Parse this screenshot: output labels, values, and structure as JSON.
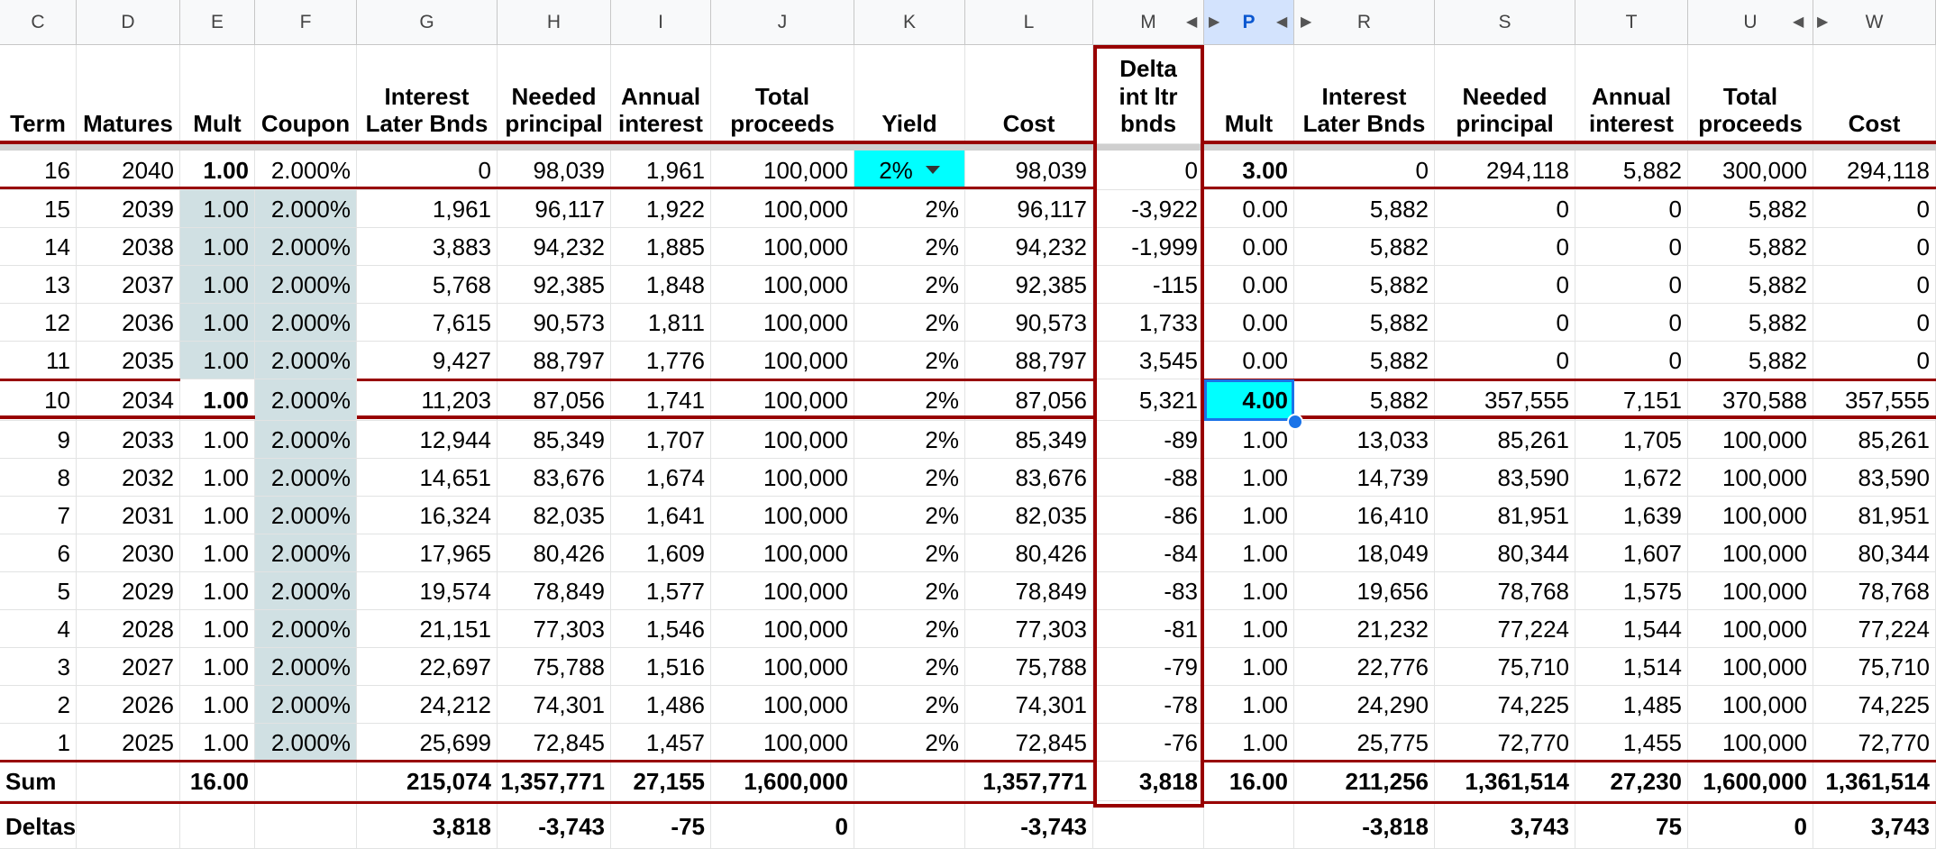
{
  "column_letters": [
    "C",
    "D",
    "E",
    "F",
    "G",
    "H",
    "I",
    "J",
    "K",
    "L",
    "M",
    "P",
    "R",
    "S",
    "T",
    "U",
    "W"
  ],
  "header_labels": {
    "C": [
      "Term"
    ],
    "D": [
      "Matures"
    ],
    "E": [
      "Mult"
    ],
    "F": [
      "Coupon"
    ],
    "G": [
      "Interest",
      "Later Bnds"
    ],
    "H": [
      "Needed",
      "principal"
    ],
    "I": [
      "Annual",
      "interest"
    ],
    "J": [
      "Total",
      "proceeds"
    ],
    "K": [
      "Yield"
    ],
    "L": [
      "Cost"
    ],
    "M": [
      "Delta",
      "int ltr",
      "bnds"
    ],
    "P": [
      "Mult"
    ],
    "R": [
      "Interest",
      "Later Bnds"
    ],
    "S": [
      "Needed",
      "principal"
    ],
    "T": [
      "Annual",
      "interest"
    ],
    "U": [
      "Total",
      "proceeds"
    ],
    "W": [
      "Cost"
    ]
  },
  "rows": [
    [
      "16",
      "2040",
      "1.00",
      "2.000%",
      "0",
      "98,039",
      "1,961",
      "100,000",
      "2%",
      "98,039",
      "0",
      "3.00",
      "0",
      "294,118",
      "5,882",
      "300,000",
      "294,118"
    ],
    [
      "15",
      "2039",
      "1.00",
      "2.000%",
      "1,961",
      "96,117",
      "1,922",
      "100,000",
      "2%",
      "96,117",
      "-3,922",
      "0.00",
      "5,882",
      "0",
      "0",
      "5,882",
      "0"
    ],
    [
      "14",
      "2038",
      "1.00",
      "2.000%",
      "3,883",
      "94,232",
      "1,885",
      "100,000",
      "2%",
      "94,232",
      "-1,999",
      "0.00",
      "5,882",
      "0",
      "0",
      "5,882",
      "0"
    ],
    [
      "13",
      "2037",
      "1.00",
      "2.000%",
      "5,768",
      "92,385",
      "1,848",
      "100,000",
      "2%",
      "92,385",
      "-115",
      "0.00",
      "5,882",
      "0",
      "0",
      "5,882",
      "0"
    ],
    [
      "12",
      "2036",
      "1.00",
      "2.000%",
      "7,615",
      "90,573",
      "1,811",
      "100,000",
      "2%",
      "90,573",
      "1,733",
      "0.00",
      "5,882",
      "0",
      "0",
      "5,882",
      "0"
    ],
    [
      "11",
      "2035",
      "1.00",
      "2.000%",
      "9,427",
      "88,797",
      "1,776",
      "100,000",
      "2%",
      "88,797",
      "3,545",
      "0.00",
      "5,882",
      "0",
      "0",
      "5,882",
      "0"
    ],
    [
      "10",
      "2034",
      "1.00",
      "2.000%",
      "11,203",
      "87,056",
      "1,741",
      "100,000",
      "2%",
      "87,056",
      "5,321",
      "4.00",
      "5,882",
      "357,555",
      "7,151",
      "370,588",
      "357,555"
    ],
    [
      "9",
      "2033",
      "1.00",
      "2.000%",
      "12,944",
      "85,349",
      "1,707",
      "100,000",
      "2%",
      "85,349",
      "-89",
      "1.00",
      "13,033",
      "85,261",
      "1,705",
      "100,000",
      "85,261"
    ],
    [
      "8",
      "2032",
      "1.00",
      "2.000%",
      "14,651",
      "83,676",
      "1,674",
      "100,000",
      "2%",
      "83,676",
      "-88",
      "1.00",
      "14,739",
      "83,590",
      "1,672",
      "100,000",
      "83,590"
    ],
    [
      "7",
      "2031",
      "1.00",
      "2.000%",
      "16,324",
      "82,035",
      "1,641",
      "100,000",
      "2%",
      "82,035",
      "-86",
      "1.00",
      "16,410",
      "81,951",
      "1,639",
      "100,000",
      "81,951"
    ],
    [
      "6",
      "2030",
      "1.00",
      "2.000%",
      "17,965",
      "80,426",
      "1,609",
      "100,000",
      "2%",
      "80,426",
      "-84",
      "1.00",
      "18,049",
      "80,344",
      "1,607",
      "100,000",
      "80,344"
    ],
    [
      "5",
      "2029",
      "1.00",
      "2.000%",
      "19,574",
      "78,849",
      "1,577",
      "100,000",
      "2%",
      "78,849",
      "-83",
      "1.00",
      "19,656",
      "78,768",
      "1,575",
      "100,000",
      "78,768"
    ],
    [
      "4",
      "2028",
      "1.00",
      "2.000%",
      "21,151",
      "77,303",
      "1,546",
      "100,000",
      "2%",
      "77,303",
      "-81",
      "1.00",
      "21,232",
      "77,224",
      "1,544",
      "100,000",
      "77,224"
    ],
    [
      "3",
      "2027",
      "1.00",
      "2.000%",
      "22,697",
      "75,788",
      "1,516",
      "100,000",
      "2%",
      "75,788",
      "-79",
      "1.00",
      "22,776",
      "75,710",
      "1,514",
      "100,000",
      "75,710"
    ],
    [
      "2",
      "2026",
      "1.00",
      "2.000%",
      "24,212",
      "74,301",
      "1,486",
      "100,000",
      "2%",
      "74,301",
      "-78",
      "1.00",
      "24,290",
      "74,225",
      "1,485",
      "100,000",
      "74,225"
    ],
    [
      "1",
      "2025",
      "1.00",
      "2.000%",
      "25,699",
      "72,845",
      "1,457",
      "100,000",
      "2%",
      "72,845",
      "-76",
      "1.00",
      "25,775",
      "72,770",
      "1,455",
      "100,000",
      "72,770"
    ]
  ],
  "sum_row": [
    "Sum",
    "",
    "16.00",
    "",
    "215,074",
    "1,357,771",
    "27,155",
    "1,600,000",
    "",
    "1,357,771",
    "3,818",
    "16.00",
    "211,256",
    "1,361,514",
    "27,230",
    "1,600,000",
    "1,361,514"
  ],
  "deltas_row": [
    "Deltas",
    "",
    "",
    "",
    "3,818",
    "-3,743",
    "-75",
    "0",
    "",
    "-3,743",
    "",
    "",
    "-3,818",
    "3,743",
    "75",
    "0",
    "3,743"
  ],
  "selected_cell": "P",
  "colors": {
    "border_accent": "#980000",
    "shaded_cell": "#d0e0e3",
    "highlight_cyan": "#00ffff",
    "selection_blue": "#1a73e8",
    "selected_header_bg": "#d3e3fd"
  }
}
